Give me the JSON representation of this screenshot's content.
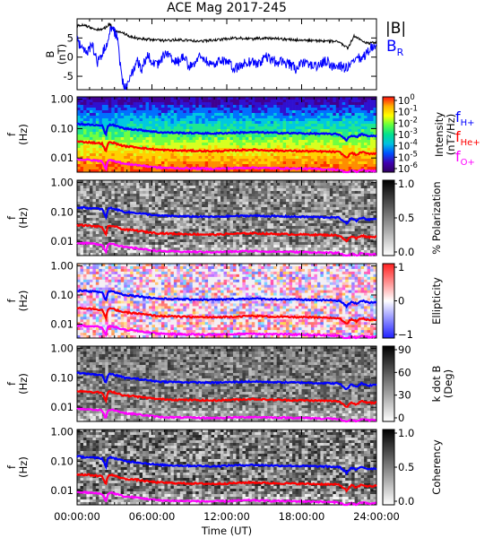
{
  "chart_data": [
    {
      "type": "line",
      "panel": "field",
      "title": "ACE Mag 2017-245",
      "ylabel": [
        "B",
        "(nT)"
      ],
      "yticks": [
        "5",
        "0",
        "-5"
      ],
      "ylim": [
        -8.5,
        10
      ],
      "xlim": [
        0,
        24
      ],
      "series": [
        {
          "name": "|B|",
          "color": "#000000",
          "x": [
            0,
            0.5,
            1,
            1.6,
            2.2,
            2.6,
            3.0,
            3.6,
            4.2,
            5,
            6,
            7,
            8,
            9,
            10,
            11,
            12,
            13,
            14,
            15,
            16,
            17,
            18,
            19,
            20,
            21,
            21.7,
            22.2,
            22.8,
            23.4,
            24
          ],
          "values": [
            8.2,
            8.5,
            7.8,
            7.2,
            7.5,
            8.8,
            7.0,
            6.5,
            5.4,
            4.8,
            4.6,
            4.3,
            4.5,
            4.3,
            4.2,
            4.4,
            4.8,
            5.0,
            4.7,
            5.0,
            4.8,
            4.6,
            4.4,
            4.3,
            4.2,
            4.0,
            2.2,
            5.5,
            4.3,
            3.5,
            3.9
          ]
        },
        {
          "name": "B_R",
          "color": "#0000ff",
          "x": [
            0,
            0.4,
            0.8,
            1.2,
            1.6,
            2.0,
            2.4,
            2.8,
            3.2,
            3.6,
            4.0,
            4.4,
            4.8,
            5.2,
            5.6,
            6,
            6.5,
            7,
            7.5,
            8,
            8.5,
            9,
            9.5,
            10,
            10.5,
            11,
            11.5,
            12,
            12.5,
            13,
            13.5,
            14,
            14.5,
            15,
            15.5,
            16,
            16.5,
            17,
            17.5,
            18,
            18.5,
            19,
            19.5,
            20,
            20.5,
            21,
            21.5,
            22,
            22.5,
            23,
            23.5,
            24
          ],
          "values": [
            4.5,
            2.0,
            1.0,
            3.5,
            -1.5,
            0.5,
            4.0,
            8.0,
            5.5,
            -6.5,
            -8.0,
            -4.0,
            -1.0,
            -3.0,
            0.5,
            -1.0,
            -2.0,
            1.0,
            -0.5,
            -1.5,
            0.0,
            -2.5,
            -1.0,
            0.5,
            -1.5,
            -2.0,
            -0.5,
            -1.0,
            -3.0,
            -2.5,
            -1.5,
            -1.0,
            -2.0,
            0.0,
            -0.5,
            -1.5,
            -1.0,
            -2.0,
            -3.0,
            -2.0,
            -1.5,
            -2.5,
            -2.0,
            -1.0,
            -2.5,
            -2.0,
            -3.0,
            -2.0,
            -0.5,
            0.0,
            2.5,
            3.0
          ]
        }
      ],
      "legend": [
        {
          "text": "|B|",
          "color": "#000000"
        },
        {
          "text": "B",
          "sub": "R",
          "color": "#0000ff"
        }
      ]
    },
    {
      "type": "heatmap",
      "panel": "intensity",
      "ylabel": [
        "f",
        "(Hz)"
      ],
      "yticks": [
        "1.00",
        "0.10",
        "0.01"
      ],
      "ylim": [
        0.0033,
        1.2
      ],
      "colorbar": {
        "label": "Intensity",
        "label_units": "(nT²/Hz)",
        "ticks": [
          {
            "base": "10",
            "exp": "0"
          },
          {
            "base": "10",
            "exp": "-1"
          },
          {
            "base": "10",
            "exp": "-2"
          },
          {
            "base": "10",
            "exp": "-3"
          },
          {
            "base": "10",
            "exp": "-4"
          },
          {
            "base": "10",
            "exp": "-5"
          },
          {
            "base": "10",
            "exp": "-6"
          }
        ],
        "colors": [
          "#ff1010",
          "#ffb000",
          "#ffff00",
          "#60ff40",
          "#00e090",
          "#00c0e0",
          "#0050ff",
          "#4000b0",
          "#300060"
        ]
      },
      "legend": [
        {
          "text": "f",
          "sub": "H+",
          "color": "#0000ff"
        },
        {
          "text": "f",
          "sub": "He+",
          "color": "#ff0000"
        },
        {
          "text": "f",
          "sub": "O+",
          "color": "#ff00ff"
        }
      ]
    },
    {
      "type": "heatmap",
      "panel": "polarization",
      "ylabel": [
        "f",
        "(Hz)"
      ],
      "yticks": [
        "1.00",
        "0.10",
        "0.01"
      ],
      "colorbar": {
        "label": "% Polarization",
        "ticks": [
          "1.0",
          "0.5",
          "0.0"
        ],
        "colors": [
          "#000000",
          "#ffffff"
        ]
      }
    },
    {
      "type": "heatmap",
      "panel": "ellipticity",
      "ylabel": [
        "f",
        "(Hz)"
      ],
      "yticks": [
        "1.00",
        "0.10",
        "0.01"
      ],
      "colorbar": {
        "label": "Ellipticity",
        "ticks": [
          "1",
          "0",
          "−1"
        ],
        "colors": [
          "#ff2020",
          "#ffffff",
          "#2020ff"
        ]
      }
    },
    {
      "type": "heatmap",
      "panel": "kdotb",
      "ylabel": [
        "f",
        "(Hz)"
      ],
      "yticks": [
        "1.00",
        "0.10",
        "0.01"
      ],
      "colorbar": {
        "label": "k dot B",
        "label_units": "(Deg)",
        "ticks": [
          "90",
          "60",
          "30",
          "0"
        ],
        "colors": [
          "#000000",
          "#ffffff"
        ]
      }
    },
    {
      "type": "heatmap",
      "panel": "coherency",
      "ylabel": [
        "f",
        "(Hz)"
      ],
      "yticks": [
        "1.00",
        "0.10",
        "0.01"
      ],
      "colorbar": {
        "label": "Coherency",
        "ticks": [
          "1.0",
          "0.5",
          "0.0"
        ],
        "colors": [
          "#000000",
          "#ffffff"
        ]
      }
    }
  ],
  "gyrofrequency_lines": {
    "x": [
      0,
      1,
      2,
      2.3,
      2.5,
      2.8,
      3.2,
      3.8,
      4.5,
      5.5,
      6.5,
      8,
      9.5,
      11,
      12.5,
      14,
      15.5,
      17,
      18.5,
      20,
      21,
      21.6,
      22.0,
      22.4,
      22.8,
      23.3,
      24
    ],
    "H+": [
      0.145,
      0.135,
      0.125,
      0.06,
      0.13,
      0.135,
      0.12,
      0.1,
      0.095,
      0.085,
      0.075,
      0.072,
      0.07,
      0.068,
      0.072,
      0.075,
      0.072,
      0.07,
      0.068,
      0.066,
      0.064,
      0.04,
      0.06,
      0.05,
      0.065,
      0.055,
      0.058
    ],
    "He+": [
      0.036,
      0.034,
      0.031,
      0.015,
      0.033,
      0.034,
      0.03,
      0.025,
      0.024,
      0.021,
      0.019,
      0.018,
      0.0175,
      0.017,
      0.018,
      0.019,
      0.018,
      0.0175,
      0.017,
      0.0165,
      0.016,
      0.01,
      0.015,
      0.0125,
      0.016,
      0.014,
      0.0145
    ],
    "O+": [
      0.009,
      0.0085,
      0.0078,
      0.004,
      0.0082,
      0.0085,
      0.0075,
      0.0063,
      0.006,
      0.0053,
      0.0047,
      0.0045,
      0.0044,
      0.0043,
      0.0045,
      0.0047,
      0.0045,
      0.0044,
      0.0043,
      0.0041,
      0.004,
      0.003,
      0.0038,
      0.0033,
      0.004,
      0.0036,
      0.0037
    ],
    "colors": {
      "H+": "#0000ff",
      "He+": "#ff0000",
      "O+": "#ff00ff"
    }
  },
  "x_axis": {
    "label": "Time (UT)",
    "ticks": [
      "00:00:00",
      "06:00:00",
      "12:00:00",
      "18:00:00",
      "24:00:00"
    ],
    "values": [
      0,
      6,
      12,
      18,
      24
    ]
  }
}
